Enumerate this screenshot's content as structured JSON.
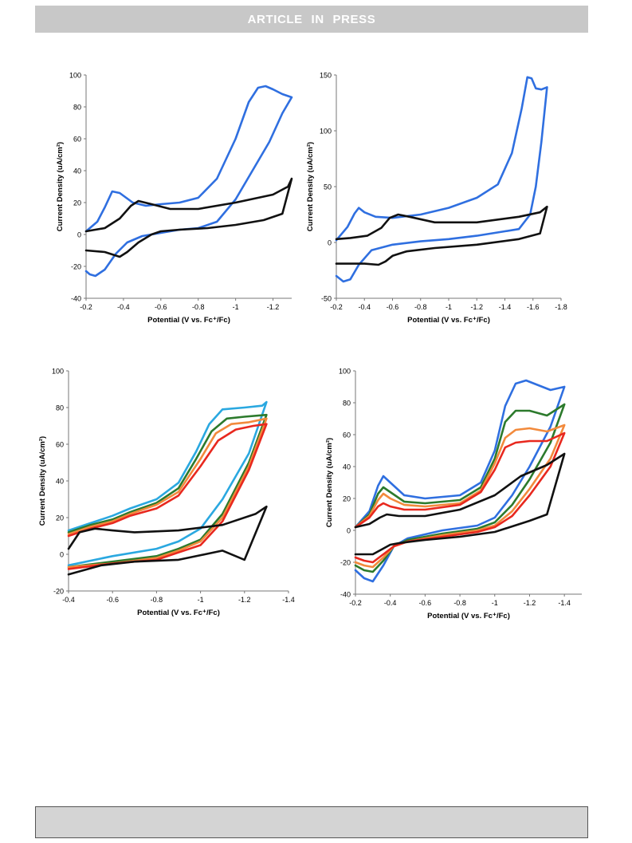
{
  "header": {
    "banner_text": "ARTICLE  IN  PRESS"
  },
  "colors": {
    "blue": "#2f6fe0",
    "black": "#111111",
    "green": "#2c7a2c",
    "orange": "#f28a3c",
    "red": "#e8281e",
    "cyan": "#2aa8e0"
  },
  "chart_data": [
    {
      "type": "line",
      "ylabel": "Current Density (uA/cm²)",
      "xlabel": "Potential (V vs. Fc⁺/Fc)",
      "xlim": [
        -0.2,
        -1.3
      ],
      "ylim": [
        -40,
        100
      ],
      "xticks": [
        -0.2,
        -0.4,
        -0.6,
        -0.8,
        -1,
        -1.2
      ],
      "xtick_labels": [
        "-0.2",
        "-0.4",
        "-0.6",
        "-0.8",
        "-1",
        "-1.2"
      ],
      "yticks": [
        -40,
        -20,
        0,
        20,
        40,
        60,
        80,
        100
      ],
      "ytick_labels": [
        "-40",
        "-20",
        "0",
        "20",
        "40",
        "60",
        "80",
        "100"
      ],
      "series": [
        {
          "color": "#2f6fe0",
          "x": [
            -0.2,
            -0.26,
            -0.3,
            -0.34,
            -0.38,
            -0.45,
            -0.52,
            -0.6,
            -0.7,
            -0.8,
            -0.9,
            -1.0,
            -1.07,
            -1.12,
            -1.16,
            -1.2,
            -1.25,
            -1.3,
            -1.3,
            -1.25,
            -1.18,
            -1.1,
            -1.0,
            -0.9,
            -0.8,
            -0.7,
            -0.6,
            -0.5,
            -0.42,
            -0.36,
            -0.3,
            -0.25,
            -0.22,
            -0.2
          ],
          "y": [
            2,
            8,
            17,
            27,
            26,
            20,
            18,
            19,
            20,
            23,
            35,
            60,
            83,
            92,
            93,
            91,
            88,
            86,
            86,
            76,
            58,
            42,
            22,
            8,
            4,
            3,
            1,
            -1,
            -5,
            -12,
            -22,
            -26,
            -25,
            -23
          ]
        },
        {
          "color": "#111111",
          "x": [
            -0.2,
            -0.3,
            -0.38,
            -0.44,
            -0.48,
            -0.55,
            -0.65,
            -0.8,
            -1.0,
            -1.2,
            -1.28,
            -1.3,
            -1.3,
            -1.25,
            -1.15,
            -1.0,
            -0.85,
            -0.7,
            -0.6,
            -0.55,
            -0.48,
            -0.42,
            -0.38,
            -0.3,
            -0.2
          ],
          "y": [
            2,
            4,
            10,
            18,
            21,
            19,
            16,
            16,
            20,
            25,
            30,
            35,
            35,
            13,
            9,
            6,
            4,
            3,
            2,
            0,
            -5,
            -11,
            -14,
            -11,
            -10
          ]
        }
      ]
    },
    {
      "type": "line",
      "ylabel": "Current Density (uA/cm²)",
      "xlabel": "Potential (V vs. Fc⁺/Fc)",
      "xlim": [
        -0.2,
        -1.8
      ],
      "ylim": [
        -50,
        150
      ],
      "xticks": [
        -0.2,
        -0.4,
        -0.6,
        -0.8,
        -1,
        -1.2,
        -1.4,
        -1.6,
        -1.8
      ],
      "xtick_labels": [
        "-0.2",
        "-0.4",
        "-0.6",
        "-0.8",
        "-1",
        "-1.2",
        "-1.4",
        "-1.6",
        "-1.8"
      ],
      "yticks": [
        -50,
        0,
        50,
        100,
        150
      ],
      "ytick_labels": [
        "-50",
        "0",
        "50",
        "100",
        "150"
      ],
      "series": [
        {
          "color": "#2f6fe0",
          "x": [
            -0.2,
            -0.28,
            -0.33,
            -0.36,
            -0.4,
            -0.48,
            -0.6,
            -0.8,
            -1.0,
            -1.2,
            -1.35,
            -1.45,
            -1.52,
            -1.56,
            -1.59,
            -1.62,
            -1.66,
            -1.7,
            -1.7,
            -1.66,
            -1.62,
            -1.58,
            -1.5,
            -1.4,
            -1.2,
            -1.0,
            -0.8,
            -0.6,
            -0.45,
            -0.36,
            -0.3,
            -0.25,
            -0.2
          ],
          "y": [
            2,
            14,
            26,
            31,
            27,
            23,
            22,
            25,
            31,
            40,
            52,
            80,
            120,
            148,
            147,
            138,
            137,
            139,
            139,
            90,
            50,
            25,
            12,
            10,
            6,
            3,
            1,
            -2,
            -7,
            -20,
            -33,
            -35,
            -30
          ]
        },
        {
          "color": "#111111",
          "x": [
            -0.2,
            -0.3,
            -0.42,
            -0.52,
            -0.58,
            -0.64,
            -0.72,
            -0.9,
            -1.2,
            -1.5,
            -1.65,
            -1.7,
            -1.7,
            -1.65,
            -1.5,
            -1.2,
            -0.9,
            -0.7,
            -0.6,
            -0.55,
            -0.5,
            -0.4,
            -0.3,
            -0.2
          ],
          "y": [
            3,
            4,
            6,
            13,
            22,
            25,
            23,
            18,
            18,
            23,
            27,
            32,
            32,
            8,
            3,
            -2,
            -5,
            -8,
            -12,
            -17,
            -20,
            -19,
            -19,
            -19
          ]
        }
      ]
    },
    {
      "type": "line",
      "ylabel": "Current Density (uA/cm²)",
      "xlabel": "Potential (V vs. Fc⁺/Fc)",
      "xlim": [
        -0.4,
        -1.4
      ],
      "ylim": [
        -20,
        100
      ],
      "xticks": [
        -0.4,
        -0.6,
        -0.8,
        -1,
        -1.2,
        -1.4
      ],
      "xtick_labels": [
        "-0.4",
        "-0.6",
        "-0.8",
        "-1",
        "-1.2",
        "-1.4"
      ],
      "yticks": [
        -20,
        0,
        20,
        40,
        60,
        80,
        100
      ],
      "ytick_labels": [
        "-20",
        "0",
        "20",
        "40",
        "60",
        "80",
        "100"
      ],
      "series": [
        {
          "color": "#2aa8e0",
          "x": [
            -0.4,
            -0.5,
            -0.6,
            -0.68,
            -0.8,
            -0.9,
            -0.98,
            -1.04,
            -1.1,
            -1.2,
            -1.28,
            -1.3,
            -1.3,
            -1.22,
            -1.1,
            -1.0,
            -0.9,
            -0.8,
            -0.6,
            -0.4
          ],
          "y": [
            13,
            17,
            21,
            25,
            30,
            39,
            56,
            71,
            79,
            80,
            81,
            83,
            83,
            55,
            30,
            14,
            7,
            3,
            -1,
            -6
          ]
        },
        {
          "color": "#2c7a2c",
          "x": [
            -0.4,
            -0.5,
            -0.6,
            -0.68,
            -0.8,
            -0.9,
            -0.98,
            -1.05,
            -1.12,
            -1.2,
            -1.3,
            -1.3,
            -1.22,
            -1.1,
            -1.0,
            -0.9,
            -0.8,
            -0.6,
            -0.4
          ],
          "y": [
            12,
            16,
            19,
            23,
            28,
            36,
            52,
            67,
            74,
            75,
            76,
            76,
            50,
            22,
            8,
            3,
            -1,
            -4,
            -7
          ]
        },
        {
          "color": "#f28a3c",
          "x": [
            -0.4,
            -0.5,
            -0.6,
            -0.68,
            -0.8,
            -0.9,
            -1.0,
            -1.07,
            -1.14,
            -1.22,
            -1.3,
            -1.3,
            -1.22,
            -1.1,
            -1.0,
            -0.9,
            -0.8,
            -0.6,
            -0.4
          ],
          "y": [
            11,
            15,
            18,
            22,
            27,
            34,
            52,
            66,
            71,
            72,
            74,
            74,
            48,
            20,
            7,
            2,
            -2,
            -5,
            -7
          ]
        },
        {
          "color": "#e8281e",
          "x": [
            -0.4,
            -0.5,
            -0.6,
            -0.68,
            -0.8,
            -0.9,
            -1.0,
            -1.08,
            -1.16,
            -1.24,
            -1.3,
            -1.3,
            -1.22,
            -1.1,
            -1.0,
            -0.9,
            -0.8,
            -0.6,
            -0.4
          ],
          "y": [
            10,
            14,
            17,
            21,
            25,
            32,
            48,
            62,
            68,
            70,
            71,
            71,
            46,
            18,
            5,
            1,
            -3,
            -5,
            -8
          ]
        },
        {
          "color": "#111111",
          "x": [
            -0.4,
            -0.45,
            -0.52,
            -0.6,
            -0.7,
            -0.9,
            -1.1,
            -1.25,
            -1.3,
            -1.3,
            -1.2,
            -1.1,
            -0.9,
            -0.7,
            -0.55,
            -0.4
          ],
          "y": [
            3,
            12,
            14,
            13,
            12,
            13,
            16,
            22,
            26,
            26,
            -3,
            2,
            -3,
            -4,
            -6,
            -11
          ]
        }
      ]
    },
    {
      "type": "line",
      "ylabel": "Current Density (uA/cm²)",
      "xlabel": "Potential (V vs. Fc⁺/Fc)",
      "xlim": [
        -0.2,
        -1.5
      ],
      "ylim": [
        -40,
        100
      ],
      "xticks": [
        -0.2,
        -0.4,
        -0.6,
        -0.8,
        -1,
        -1.2,
        -1.4
      ],
      "xtick_labels": [
        "-0.2",
        "-0.4",
        "-0.6",
        "-0.8",
        "-1",
        "-1.2",
        "-1.4"
      ],
      "yticks": [
        -40,
        -20,
        0,
        20,
        40,
        60,
        80,
        100
      ],
      "ytick_labels": [
        "-40",
        "-20",
        "0",
        "20",
        "40",
        "60",
        "80",
        "100"
      ],
      "series": [
        {
          "color": "#2f6fe0",
          "x": [
            -0.2,
            -0.28,
            -0.33,
            -0.36,
            -0.4,
            -0.48,
            -0.6,
            -0.8,
            -0.92,
            -1.0,
            -1.06,
            -1.12,
            -1.18,
            -1.25,
            -1.32,
            -1.4,
            -1.4,
            -1.32,
            -1.2,
            -1.1,
            -1.0,
            -0.9,
            -0.7,
            -0.5,
            -0.42,
            -0.36,
            -0.3,
            -0.25,
            -0.2
          ],
          "y": [
            2,
            12,
            28,
            34,
            30,
            22,
            20,
            22,
            30,
            50,
            78,
            92,
            94,
            91,
            88,
            90,
            90,
            65,
            40,
            22,
            8,
            3,
            0,
            -5,
            -10,
            -22,
            -32,
            -30,
            -25
          ]
        },
        {
          "color": "#2c7a2c",
          "x": [
            -0.2,
            -0.28,
            -0.33,
            -0.36,
            -0.4,
            -0.48,
            -0.6,
            -0.8,
            -0.92,
            -1.0,
            -1.06,
            -1.12,
            -1.2,
            -1.3,
            -1.4,
            -1.4,
            -1.32,
            -1.2,
            -1.1,
            -1.0,
            -0.9,
            -0.7,
            -0.5,
            -0.42,
            -0.36,
            -0.3,
            -0.25,
            -0.2
          ],
          "y": [
            2,
            10,
            23,
            27,
            24,
            18,
            17,
            19,
            27,
            45,
            68,
            75,
            75,
            72,
            79,
            79,
            55,
            32,
            16,
            5,
            1,
            -2,
            -6,
            -10,
            -19,
            -26,
            -25,
            -22
          ]
        },
        {
          "color": "#f28a3c",
          "x": [
            -0.2,
            -0.28,
            -0.33,
            -0.36,
            -0.4,
            -0.48,
            -0.6,
            -0.8,
            -0.92,
            -1.0,
            -1.06,
            -1.12,
            -1.2,
            -1.3,
            -1.4,
            -1.4,
            -1.32,
            -1.2,
            -1.1,
            -1.0,
            -0.9,
            -0.7,
            -0.5,
            -0.42,
            -0.36,
            -0.3,
            -0.25,
            -0.2
          ],
          "y": [
            2,
            9,
            19,
            23,
            20,
            16,
            15,
            17,
            25,
            42,
            58,
            63,
            64,
            62,
            66,
            66,
            45,
            26,
            12,
            3,
            0,
            -3,
            -7,
            -10,
            -17,
            -23,
            -22,
            -20
          ]
        },
        {
          "color": "#e8281e",
          "x": [
            -0.2,
            -0.28,
            -0.33,
            -0.36,
            -0.4,
            -0.48,
            -0.6,
            -0.8,
            -0.92,
            -1.0,
            -1.06,
            -1.12,
            -1.2,
            -1.3,
            -1.4,
            -1.4,
            -1.32,
            -1.2,
            -1.1,
            -1.0,
            -0.9,
            -0.7,
            -0.5,
            -0.42,
            -0.36,
            -0.3,
            -0.25,
            -0.2
          ],
          "y": [
            2,
            8,
            15,
            17,
            15,
            13,
            13,
            16,
            24,
            38,
            52,
            55,
            56,
            56,
            61,
            61,
            40,
            22,
            9,
            2,
            -1,
            -4,
            -7,
            -10,
            -15,
            -20,
            -19,
            -17
          ]
        },
        {
          "color": "#111111",
          "x": [
            -0.2,
            -0.28,
            -0.34,
            -0.38,
            -0.45,
            -0.6,
            -0.8,
            -1.0,
            -1.15,
            -1.3,
            -1.4,
            -1.4,
            -1.3,
            -1.2,
            -1.0,
            -0.8,
            -0.6,
            -0.45,
            -0.4,
            -0.35,
            -0.3,
            -0.2
          ],
          "y": [
            2,
            4,
            8,
            10,
            9,
            9,
            13,
            22,
            34,
            41,
            48,
            48,
            10,
            6,
            -1,
            -4,
            -6,
            -8,
            -9,
            -12,
            -15,
            -15
          ]
        }
      ]
    }
  ]
}
